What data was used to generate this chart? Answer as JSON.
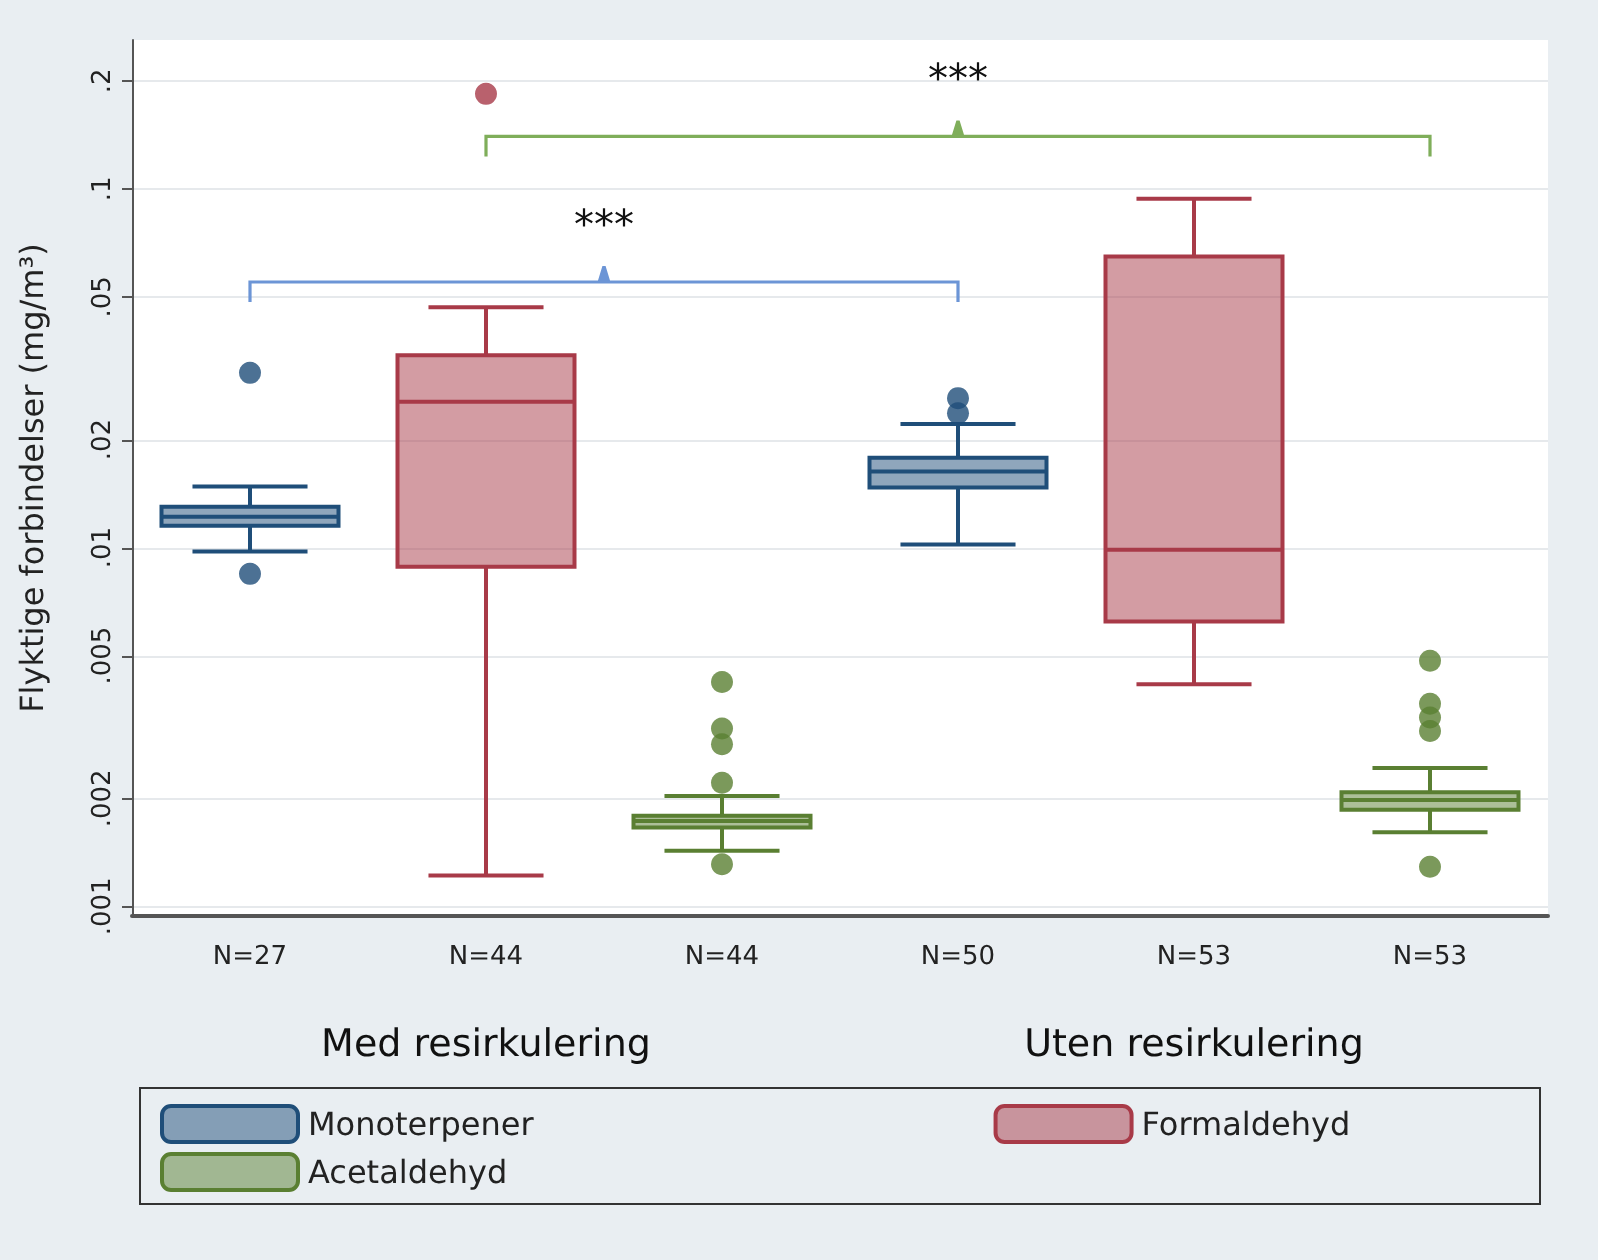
{
  "chart_data": {
    "type": "box",
    "ylabel": "Flyktige forbindelser (mg/m³)",
    "categories": [
      "N=27",
      "N=44",
      "N=44",
      "N=50",
      "N=53",
      "N=53"
    ],
    "series": [
      {
        "name": "Monoterpener",
        "color": "#1f4e79",
        "boxes": [
          {
            "low": 0.00975,
            "q1": 0.0115,
            "median": 0.0122,
            "q3": 0.013,
            "high": 0.0148,
            "outliers": [
              0.0307,
              0.00845
            ]
          },
          null,
          null,
          {
            "low": 0.0102,
            "q1": 0.0147,
            "median": 0.0163,
            "q3": 0.0178,
            "high": 0.0221,
            "outliers": [
              0.0261,
              0.0237
            ]
          },
          null,
          null
        ]
      },
      {
        "name": "Formaldehyd",
        "color": "#a83a48",
        "boxes": [
          null,
          {
            "low": 0.00122,
            "q1": 0.00885,
            "median": 0.0255,
            "q3": 0.0344,
            "high": 0.0468,
            "outliers": [
              0.184
            ]
          },
          null,
          null,
          {
            "low": 0.00416,
            "q1": 0.00622,
            "median": 0.00987,
            "q3": 0.0648,
            "high": 0.0938
          },
          null
        ]
      },
      {
        "name": "Acetaldehyd",
        "color": "#5a7f32",
        "boxes": [
          null,
          null,
          {
            "low": 0.00143,
            "q1": 0.00166,
            "median": 0.00173,
            "q3": 0.00179,
            "high": 0.00203,
            "outliers": [
              0.00422,
              0.00313,
              0.00283,
              0.00221,
              0.00131
            ]
          },
          null,
          null,
          {
            "low": 0.00161,
            "q1": 0.00186,
            "median": 0.00198,
            "q3": 0.00208,
            "high": 0.00243,
            "outliers": [
              0.00484,
              0.00367,
              0.00336,
              0.00308,
              0.00129
            ]
          }
        ]
      }
    ],
    "annotations": [
      "Med resirkulering",
      "Uten resirkulering",
      "***",
      "***"
    ],
    "log": "y",
    "ylim": [
      0.00094,
      0.26
    ],
    "yticks": [
      {
        "value": 0.001,
        "label": ".001"
      },
      {
        "value": 0.002,
        "label": ".002"
      },
      {
        "value": 0.005,
        "label": ".005"
      },
      {
        "value": 0.01,
        "label": ".01"
      },
      {
        "value": 0.02,
        "label": ".02"
      },
      {
        "value": 0.05,
        "label": ".05"
      },
      {
        "value": 0.1,
        "label": ".1"
      },
      {
        "value": 0.2,
        "label": ".2"
      }
    ],
    "grid": "y",
    "legend": "bottom"
  }
}
